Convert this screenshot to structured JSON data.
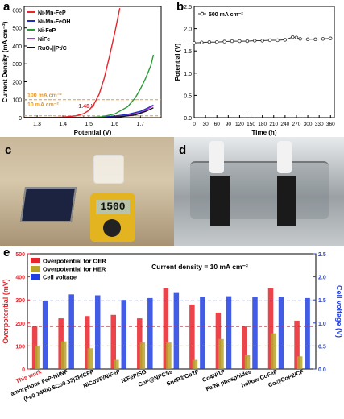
{
  "panel_letters": {
    "a": "a",
    "b": "b",
    "c": "c",
    "d": "d",
    "e": "e"
  },
  "chart_data": [
    {
      "panel": "a",
      "type": "line",
      "xlabel": "Potential (V)",
      "ylabel": "Current Density (mA cm⁻²)",
      "xlim": [
        1.25,
        1.78
      ],
      "ylim": [
        0,
        620
      ],
      "xticks": [
        "1.3",
        "1.4",
        "1.5",
        "1.6",
        "1.7"
      ],
      "xtick_values": [
        1.3,
        1.4,
        1.5,
        1.6,
        1.7
      ],
      "yticks": [
        "0",
        "100",
        "200",
        "300",
        "400",
        "500",
        "600"
      ],
      "ytick_values": [
        0,
        100,
        200,
        300,
        400,
        500,
        600
      ],
      "legend_position": "top-left",
      "series": [
        {
          "name": "Ni-Mn-FeP",
          "color": "#e8252c",
          "x": [
            1.25,
            1.35,
            1.4,
            1.45,
            1.48,
            1.5,
            1.52,
            1.54,
            1.56,
            1.58,
            1.6,
            1.62
          ],
          "y": [
            0,
            1,
            3,
            10,
            22,
            40,
            75,
            130,
            220,
            340,
            470,
            610
          ]
        },
        {
          "name": "Ni-Mn-FeOH",
          "color": "#1f2dbf",
          "x": [
            1.25,
            1.45,
            1.55,
            1.6,
            1.65,
            1.7,
            1.73,
            1.75
          ],
          "y": [
            0,
            0,
            3,
            8,
            18,
            35,
            55,
            70
          ]
        },
        {
          "name": "Ni-FeP",
          "color": "#2b9a35",
          "x": [
            1.25,
            1.5,
            1.55,
            1.6,
            1.65,
            1.68,
            1.7,
            1.72,
            1.74,
            1.75
          ],
          "y": [
            0,
            0,
            5,
            20,
            60,
            110,
            160,
            220,
            290,
            350
          ]
        },
        {
          "name": "NiFe",
          "color": "#9a3bd6",
          "x": [
            1.25,
            1.55,
            1.6,
            1.65,
            1.7,
            1.73,
            1.75
          ],
          "y": [
            0,
            0,
            4,
            12,
            28,
            50,
            68
          ]
        },
        {
          "name": "RuO₂||Pt/C",
          "color": "#111111",
          "x": [
            1.25,
            1.55,
            1.62,
            1.68,
            1.72,
            1.75
          ],
          "y": [
            0,
            0,
            5,
            15,
            35,
            55
          ]
        }
      ],
      "annotations": {
        "line_100": "100 mA cm⁻²",
        "line_10": "10 mA cm⁻²",
        "voltage": "1.48 V"
      },
      "ref_lines": [
        100,
        10
      ],
      "marker_x": 1.48
    },
    {
      "panel": "b",
      "type": "line",
      "xlabel": "Time (h)",
      "ylabel": "Potential (V)",
      "xlim": [
        0,
        370
      ],
      "ylim": [
        0,
        2.5
      ],
      "xticks": [
        "0",
        "30",
        "60",
        "90",
        "120",
        "150",
        "180",
        "210",
        "240",
        "270",
        "300",
        "330",
        "360"
      ],
      "xtick_values": [
        0,
        30,
        60,
        90,
        120,
        150,
        180,
        210,
        240,
        270,
        300,
        330,
        360
      ],
      "yticks": [
        "0.0",
        "0.5",
        "1.0",
        "1.5",
        "2.0",
        "2.5"
      ],
      "ytick_values": [
        0,
        0.5,
        1.0,
        1.5,
        2.0,
        2.5
      ],
      "legend_position": "top-left",
      "series": [
        {
          "name": "500 mA cm⁻²",
          "color": "#333333",
          "x": [
            0,
            20,
            40,
            60,
            80,
            100,
            120,
            140,
            160,
            180,
            200,
            220,
            240,
            260,
            270,
            280,
            300,
            320,
            340,
            360
          ],
          "y": [
            1.68,
            1.69,
            1.7,
            1.7,
            1.71,
            1.72,
            1.72,
            1.72,
            1.73,
            1.73,
            1.74,
            1.74,
            1.75,
            1.81,
            1.8,
            1.77,
            1.76,
            1.76,
            1.77,
            1.78
          ]
        }
      ]
    },
    {
      "panel": "e",
      "type": "bar",
      "title": "Current density = 10 mA cm⁻²",
      "ylabel_left": "Overpotential (mV)",
      "ylabel_right": "Cell voltage (V)",
      "ylim_left": [
        0,
        500
      ],
      "ylim_right": [
        0,
        2.5
      ],
      "yticks_left": [
        "0",
        "100",
        "200",
        "300",
        "400",
        "500"
      ],
      "ytick_values_left": [
        0,
        100,
        200,
        300,
        400,
        500
      ],
      "yticks_right": [
        "0.0",
        "0.5",
        "1.0",
        "1.5",
        "2.0",
        "2.5"
      ],
      "ytick_values_right": [
        0,
        0.5,
        1.0,
        1.5,
        2.0,
        2.5
      ],
      "legend_position": "top-left",
      "legend": [
        "Overpotential for OER",
        "Overpotential for HER",
        "Cell voltage"
      ],
      "categories": [
        "This work",
        "amorphous FeP-Ni/NF",
        "(Fe0.14Ni0.6Co0.33)2P/CFP",
        "NiCoVP/NiFeP",
        "NiFeP/SG",
        "CoP@NPCSs",
        "Sn4P3/Co2P",
        "Co4Ni1P",
        "Fe/Ni phosphides",
        "hollow CoFeP",
        "Co@CoP2/CF"
      ],
      "series": [
        {
          "name": "Overpotential for OER",
          "color": "#e8252c",
          "values": [
            185,
            220,
            230,
            235,
            220,
            350,
            280,
            245,
            185,
            350,
            210
          ]
        },
        {
          "name": "Overpotential for HER",
          "color": "#b8a52a",
          "values": [
            100,
            120,
            90,
            40,
            115,
            115,
            40,
            130,
            60,
            155,
            55
          ]
        },
        {
          "name": "Cell voltage",
          "color": "#2240e0",
          "values": [
            1.48,
            1.62,
            1.6,
            1.5,
            1.54,
            1.65,
            1.57,
            1.58,
            1.57,
            1.57,
            1.54
          ]
        }
      ],
      "ref_lines_left": [
        185,
        100
      ],
      "ref_line_right": 1.48
    }
  ],
  "photo_c": {
    "meter_reading": "1500"
  }
}
